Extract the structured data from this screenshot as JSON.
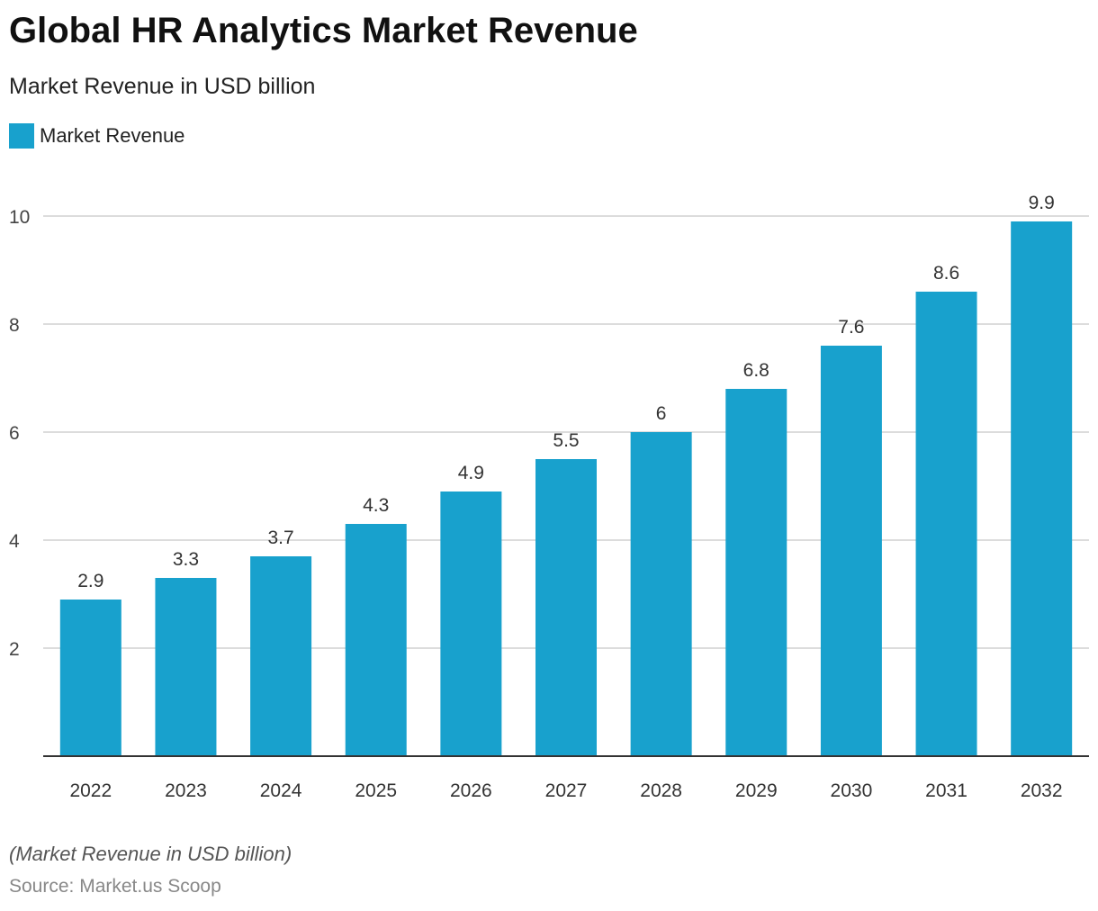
{
  "title": "Global HR Analytics Market Revenue",
  "subtitle": "Market Revenue in USD billion",
  "note": "(Market Revenue in USD billion)",
  "source": "Source: Market.us Scoop",
  "chart_data": {
    "type": "bar",
    "categories": [
      "2022",
      "2023",
      "2024",
      "2025",
      "2026",
      "2027",
      "2028",
      "2029",
      "2030",
      "2031",
      "2032"
    ],
    "series": [
      {
        "name": "Market Revenue",
        "values": [
          2.9,
          3.3,
          3.7,
          4.3,
          4.9,
          5.5,
          6,
          6.8,
          7.6,
          8.6,
          9.9
        ],
        "color": "#18a1cd"
      }
    ],
    "yticks": [
      2,
      4,
      6,
      8,
      10
    ],
    "ylim": [
      0,
      10
    ],
    "grid": true,
    "legend": "top-left"
  }
}
